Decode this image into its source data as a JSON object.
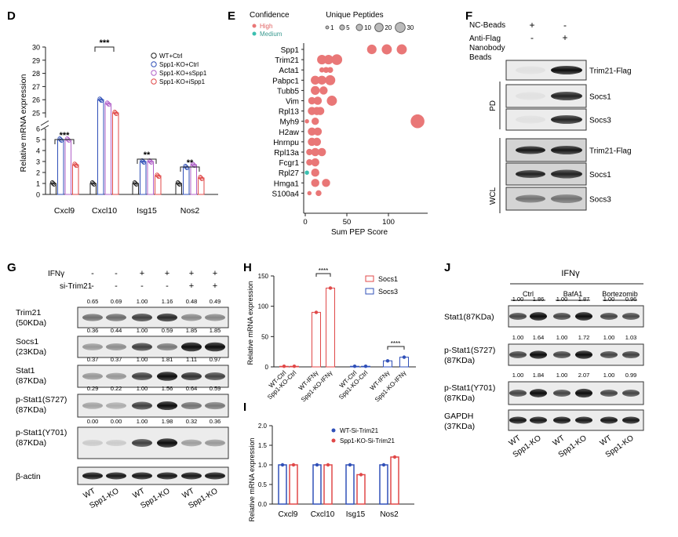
{
  "panel_letters": {
    "D": "D",
    "E": "E",
    "F": "F",
    "G": "G",
    "H": "H",
    "I": "I",
    "J": "J"
  },
  "colors": {
    "wt": "#222222",
    "ko": "#3050b8",
    "si": "#b060c8",
    "ki": "#e04848",
    "socs1": "#e04848",
    "socs3": "#3050b8",
    "pink": "#e97777",
    "teal": "#3bbfb0"
  },
  "panelD": {
    "ylabel": "Relative mRNA expression",
    "yticks": [
      "0",
      "1",
      "2",
      "3",
      "4",
      "5",
      "6",
      "25",
      "26",
      "27",
      "28",
      "29",
      "30"
    ],
    "legend": [
      "WT+Ctrl",
      "Spp1-KO+Ctrl",
      "Spp1-KO+sSpp1",
      "Spp1-KO+iSpp1"
    ],
    "categories": [
      "Cxcl9",
      "Cxcl10",
      "Isg15",
      "Nos2"
    ],
    "significance": [
      "***",
      "***",
      "**",
      "**"
    ]
  },
  "panelE": {
    "legend_confidence_title": "Confidence",
    "legend_peptides_title": "Unique Peptides",
    "confidence": [
      "High",
      "Medium"
    ],
    "peptide_sizes": [
      "1",
      "5",
      "10",
      "20",
      "30"
    ],
    "proteins": [
      "Spp1",
      "Trim21",
      "Acta1",
      "Pabpc1",
      "Tubb5",
      "Vim",
      "Rpl13",
      "Myh9",
      "H2aw",
      "Hnrnpu",
      "Rpl13a",
      "Fcgr1",
      "Rpl27",
      "Hmga1",
      "S100a4"
    ],
    "xlabel": "Sum PEP Score",
    "xticks": [
      "0",
      "50",
      "100"
    ]
  },
  "panelF": {
    "row_labels": [
      "NC-Beads",
      "Anti-Flag Nanobody Beads"
    ],
    "row_label_lines": [
      "Anti-Flag",
      "Nanobody",
      "Beads"
    ],
    "lane1": [
      "+",
      "-"
    ],
    "lane2": [
      "-",
      "+"
    ],
    "bands": [
      "Trim21-Flag",
      "Socs1",
      "Socs3",
      "Trim21-Flag",
      "Socs1",
      "Socs3"
    ],
    "groups": [
      "PD",
      "WCL"
    ]
  },
  "panelG": {
    "treatments": [
      "IFNγ",
      "si-Trim21"
    ],
    "ifn": [
      "-",
      "-",
      "+",
      "+",
      "+",
      "+"
    ],
    "si": [
      "-",
      "-",
      "-",
      "-",
      "+",
      "+"
    ],
    "blots": [
      {
        "label": "Trim21",
        "sub": "(50KDa)",
        "values": [
          "0.65",
          "0.69",
          "1.00",
          "1.16",
          "0.48",
          "0.49"
        ]
      },
      {
        "label": "Socs1",
        "sub": "(23KDa)",
        "values": [
          "0.36",
          "0.44",
          "1.00",
          "0.59",
          "1.85",
          "1.85"
        ]
      },
      {
        "label": "Stat1",
        "sub": "(87KDa)",
        "values": [
          "0.37",
          "0.37",
          "1.00",
          "1.81",
          "1.11",
          "0.97"
        ]
      },
      {
        "label": "p-Stat1(S727)",
        "sub": "(87KDa)",
        "values": [
          "0.29",
          "0.22",
          "1.00",
          "1.56",
          "0.64",
          "0.59"
        ]
      },
      {
        "label": "p-Stat1(Y701)",
        "sub": "(87KDa)",
        "values": [
          "0.00",
          "0.00",
          "1.00",
          "1.98",
          "0.32",
          "0.36"
        ]
      },
      {
        "label": "β-actin",
        "sub": "",
        "values": []
      }
    ],
    "lanes": [
      "WT",
      "Spp1-KO",
      "WT",
      "Spp1-KO",
      "WT",
      "Spp1-KO"
    ]
  },
  "panelH": {
    "ylabel": "Relative mRNA expression",
    "yticks": [
      "0",
      "50",
      "100",
      "150"
    ],
    "legend": [
      "Socs1",
      "Socs3"
    ],
    "xlabels": [
      "WT-Ctrl",
      "Spp1-KO-Ctrl",
      "WT-IFNγ",
      "Spp1-KO-IFNγ",
      "WT-Ctrl",
      "Spp1-KO-Ctrl",
      "WT-IFNγ",
      "Spp1-KO-IFNγ"
    ],
    "significance": [
      "****",
      "****"
    ]
  },
  "panelI": {
    "ylabel": "Relative mRNA expression",
    "yticks": [
      "0.0",
      "0.5",
      "1.0",
      "1.5",
      "2.0"
    ],
    "legend": [
      "WT-Si-Trim21",
      "Spp1-KO-Si-Trim21"
    ],
    "categories": [
      "Cxcl9",
      "Cxcl10",
      "Isg15",
      "Nos2"
    ]
  },
  "panelJ": {
    "treatment": "IFNγ",
    "groups": [
      "Ctrl",
      "BafA1",
      "Bortezomib"
    ],
    "blots": [
      {
        "label": "Stat1(87KDa)",
        "sub": "",
        "values": [
          "1.00",
          "1.86",
          "1.00",
          "1.87",
          "1.00",
          "0.96"
        ]
      },
      {
        "label": "p-Stat1(S727)",
        "sub": "(87KDa)",
        "values": [
          "1.00",
          "1.64",
          "1.00",
          "1.72",
          "1.00",
          "1.03"
        ]
      },
      {
        "label": "p-Stat1(Y701)",
        "sub": "(87KDa)",
        "values": [
          "1.00",
          "1.84",
          "1.00",
          "2.07",
          "1.00",
          "0.99"
        ]
      },
      {
        "label": "GAPDH",
        "sub": "(37KDa)",
        "values": []
      }
    ],
    "lanes": [
      "WT",
      "Spp1-KO",
      "WT",
      "Spp1-KO",
      "WT",
      "Spp1-KO"
    ]
  },
  "chart_data": [
    {
      "type": "bar",
      "title": "",
      "categories": [
        "Cxcl9",
        "Cxcl10",
        "Isg15",
        "Nos2"
      ],
      "ylabel": "Relative mRNA expression",
      "ylim": [
        0,
        30
      ],
      "broken_axis": [
        6,
        25
      ],
      "series": [
        {
          "name": "WT+Ctrl",
          "values": [
            1.0,
            1.0,
            1.0,
            1.0
          ]
        },
        {
          "name": "Spp1-KO+Ctrl",
          "values": [
            5.0,
            26.0,
            3.0,
            2.5
          ]
        },
        {
          "name": "Spp1-KO+sSpp1",
          "values": [
            5.0,
            25.7,
            3.0,
            2.7
          ]
        },
        {
          "name": "Spp1-KO+iSpp1",
          "values": [
            2.7,
            25.0,
            1.7,
            1.5
          ]
        }
      ]
    },
    {
      "type": "scatter",
      "title": "",
      "xlabel": "Sum PEP Score",
      "xlim": [
        0,
        140
      ],
      "categories": [
        "Spp1",
        "Trim21",
        "Acta1",
        "Pabpc1",
        "Tubb5",
        "Vim",
        "Rpl13",
        "Myh9",
        "H2aw",
        "Hnrnpu",
        "Rpl13a",
        "Fcgr1",
        "Rpl27",
        "Hmga1",
        "S100a4"
      ],
      "points": [
        {
          "protein": "Spp1",
          "x": [
            80,
            98,
            116
          ],
          "peptides": [
            12,
            14,
            14
          ],
          "confidence": "High"
        },
        {
          "protein": "Trim21",
          "x": [
            20,
            28,
            38
          ],
          "peptides": [
            12,
            12,
            16
          ],
          "confidence": "High"
        },
        {
          "protein": "Acta1",
          "x": [
            20,
            25,
            30
          ],
          "peptides": [
            2,
            3,
            3
          ],
          "confidence": "High"
        },
        {
          "protein": "Pabpc1",
          "x": [
            12,
            20,
            30
          ],
          "peptides": [
            10,
            10,
            14
          ],
          "confidence": "High"
        },
        {
          "protein": "Tubb5",
          "x": [
            12,
            22
          ],
          "peptides": [
            10,
            8
          ],
          "confidence": "High"
        },
        {
          "protein": "Vim",
          "x": [
            8,
            15,
            32
          ],
          "peptides": [
            6,
            8,
            14
          ],
          "confidence": "High"
        },
        {
          "protein": "Rpl13",
          "x": [
            8,
            14,
            18
          ],
          "peptides": [
            8,
            8,
            8
          ],
          "confidence": "High"
        },
        {
          "protein": "Myh9",
          "x": [
            2,
            12,
            135
          ],
          "peptides": [
            1,
            6,
            30
          ],
          "confidence": "High"
        },
        {
          "protein": "H2aw",
          "x": [
            8,
            15
          ],
          "peptides": [
            8,
            8
          ],
          "confidence": "High"
        },
        {
          "protein": "Hnrnpu",
          "x": [
            8,
            14
          ],
          "peptides": [
            8,
            8
          ],
          "confidence": "High"
        },
        {
          "protein": "Rpl13a",
          "x": [
            5,
            12,
            20
          ],
          "peptides": [
            4,
            8,
            8
          ],
          "confidence": "High"
        },
        {
          "protein": "Fcgr1",
          "x": [
            5,
            12
          ],
          "peptides": [
            4,
            8
          ],
          "confidence": "High"
        },
        {
          "protein": "Rpl27",
          "x": [
            2,
            12
          ],
          "peptides": [
            1,
            8
          ],
          "confidence": "Medium"
        },
        {
          "protein": "Hmga1",
          "x": [
            12,
            25
          ],
          "peptides": [
            8,
            8
          ],
          "confidence": "High"
        },
        {
          "protein": "S100a4",
          "x": [
            5,
            16
          ],
          "peptides": [
            1,
            3
          ],
          "confidence": "High"
        }
      ]
    },
    {
      "type": "bar",
      "title": "",
      "categories": [
        "WT-Ctrl",
        "Spp1-KO-Ctrl",
        "WT-IFNγ",
        "Spp1-KO-IFNγ"
      ],
      "ylabel": "Relative mRNA expression",
      "ylim": [
        0,
        150
      ],
      "series": [
        {
          "name": "Socs1",
          "values": [
            1,
            1,
            90,
            130
          ]
        },
        {
          "name": "Socs3",
          "values": [
            1,
            1,
            10,
            16
          ]
        }
      ]
    },
    {
      "type": "bar",
      "title": "",
      "categories": [
        "Cxcl9",
        "Cxcl10",
        "Isg15",
        "Nos2"
      ],
      "ylabel": "Relative mRNA expression",
      "ylim": [
        0,
        2.0
      ],
      "series": [
        {
          "name": "WT-Si-Trim21",
          "values": [
            1.0,
            1.0,
            1.0,
            1.0
          ]
        },
        {
          "name": "Spp1-KO-Si-Trim21",
          "values": [
            1.0,
            1.0,
            0.75,
            1.2
          ]
        }
      ]
    }
  ]
}
